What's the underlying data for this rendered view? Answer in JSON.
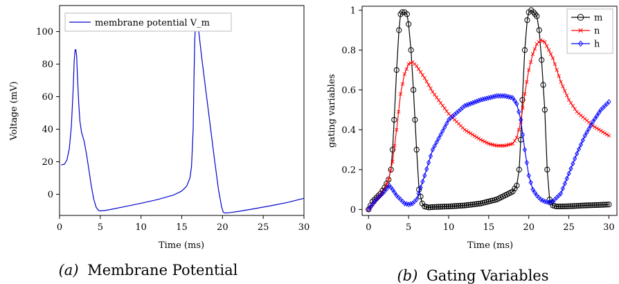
{
  "chart_data": [
    {
      "type": "line",
      "caption_label": "(a)",
      "caption": "Membrane Potential",
      "xlabel": "Time (ms)",
      "ylabel": "Voltage (mV)",
      "xlim": [
        0,
        30
      ],
      "ylim": [
        -13,
        116
      ],
      "xticks": [
        "0",
        "5",
        "10",
        "15",
        "20",
        "25",
        "30"
      ],
      "yticks": [
        "0",
        "20",
        "40",
        "60",
        "80",
        "100"
      ],
      "legend_position": "top-left",
      "series": [
        {
          "name": "membrane potential V_m",
          "color": "#0000cc",
          "x": [
            0.2,
            0.6,
            0.9,
            1.2,
            1.45,
            1.65,
            1.8,
            1.9,
            2.0,
            2.1,
            2.2,
            2.35,
            2.5,
            2.7,
            3.0,
            3.3,
            3.6,
            3.9,
            4.2,
            4.5,
            4.8,
            5.0,
            5.5,
            6.0,
            8.0,
            10.0,
            12.0,
            14.0,
            15.0,
            15.6,
            16.0,
            16.2,
            16.4,
            16.5,
            16.6,
            16.7,
            16.8,
            16.9,
            17.0,
            17.2,
            17.5,
            18.0,
            18.5,
            19.0,
            19.5,
            19.9,
            20.1,
            20.3,
            21.0,
            22.0,
            24.0,
            26.0,
            28.0,
            30.0
          ],
          "y": [
            18,
            18.5,
            21,
            28,
            42,
            62,
            82,
            88.5,
            89,
            85,
            72,
            56,
            45,
            38,
            33,
            25,
            15,
            5,
            -3,
            -8,
            -10,
            -10.2,
            -10,
            -9.6,
            -7.6,
            -5.5,
            -3.3,
            -0.5,
            2,
            5,
            10,
            17,
            40,
            70,
            95,
            106,
            110,
            108,
            104,
            95,
            82,
            62,
            42,
            22,
            3,
            -8,
            -11,
            -11.5,
            -11.2,
            -10.5,
            -8.8,
            -7,
            -5,
            -2.5
          ]
        }
      ]
    },
    {
      "type": "line",
      "caption_label": "(b)",
      "caption": "Gating Variables",
      "xlabel": "Time (ms)",
      "ylabel": "gating variables",
      "xlim": [
        -0.8,
        31
      ],
      "ylim": [
        -0.03,
        1.02
      ],
      "xticks": [
        "0",
        "5",
        "10",
        "15",
        "20",
        "25",
        "30"
      ],
      "yticks": [
        "0",
        "0.2",
        "0.4",
        "0.6",
        "0.8",
        "1"
      ],
      "legend_position": "top-right",
      "series": [
        {
          "name": "m",
          "color": "#000000",
          "marker": "circle",
          "x": [
            0,
            0.5,
            1,
            1.5,
            2,
            2.5,
            2.8,
            3.0,
            3.2,
            3.5,
            3.8,
            4.0,
            4.2,
            4.5,
            4.8,
            5.0,
            5.3,
            5.6,
            6.0,
            6.3,
            6.7,
            7.0,
            7.5,
            8,
            10,
            12,
            14,
            15,
            16,
            17,
            18,
            18.5,
            18.8,
            19.0,
            19.2,
            19.5,
            19.8,
            20.0,
            20.3,
            20.6,
            21.0,
            21.3,
            21.6,
            22.0,
            22.3,
            22.6,
            23.0,
            23.5,
            24,
            25,
            27,
            29,
            30
          ],
          "y": [
            0,
            0.04,
            0.06,
            0.08,
            0.11,
            0.15,
            0.2,
            0.3,
            0.45,
            0.7,
            0.9,
            0.98,
            0.99,
            0.99,
            0.98,
            0.93,
            0.8,
            0.6,
            0.3,
            0.1,
            0.03,
            0.015,
            0.01,
            0.012,
            0.015,
            0.02,
            0.03,
            0.04,
            0.05,
            0.07,
            0.09,
            0.12,
            0.2,
            0.35,
            0.55,
            0.8,
            0.95,
            0.99,
            1.0,
            0.99,
            0.97,
            0.9,
            0.75,
            0.5,
            0.2,
            0.05,
            0.02,
            0.015,
            0.015,
            0.016,
            0.02,
            0.023,
            0.025
          ]
        },
        {
          "name": "n",
          "color": "#ff0000",
          "marker": "x",
          "x": [
            0,
            1,
            2,
            2.5,
            3,
            3.5,
            4,
            4.5,
            5,
            5.5,
            6,
            7,
            8,
            10,
            12,
            14,
            15,
            16,
            17,
            18,
            18.5,
            19,
            19.5,
            20,
            20.5,
            21,
            21.5,
            22,
            23,
            24,
            25,
            26,
            28,
            30
          ],
          "y": [
            0,
            0.05,
            0.1,
            0.15,
            0.24,
            0.4,
            0.58,
            0.68,
            0.73,
            0.74,
            0.72,
            0.66,
            0.59,
            0.48,
            0.4,
            0.35,
            0.33,
            0.32,
            0.32,
            0.33,
            0.36,
            0.44,
            0.58,
            0.7,
            0.78,
            0.83,
            0.85,
            0.84,
            0.76,
            0.64,
            0.55,
            0.49,
            0.42,
            0.37
          ]
        },
        {
          "name": "h",
          "color": "#0000ff",
          "marker": "diamond",
          "x": [
            0,
            1,
            2,
            2.6,
            3.0,
            3.5,
            4,
            4.5,
            5,
            5.5,
            6,
            7,
            8,
            10,
            12,
            14,
            16,
            17,
            18,
            18.5,
            19,
            19.5,
            20,
            20.5,
            21,
            21.5,
            22,
            22.5,
            23,
            24,
            25,
            26,
            27,
            28,
            29,
            30
          ],
          "y": [
            0,
            0.05,
            0.09,
            0.12,
            0.1,
            0.07,
            0.05,
            0.03,
            0.025,
            0.03,
            0.05,
            0.17,
            0.3,
            0.45,
            0.52,
            0.55,
            0.57,
            0.57,
            0.56,
            0.53,
            0.45,
            0.3,
            0.17,
            0.1,
            0.07,
            0.05,
            0.04,
            0.035,
            0.04,
            0.08,
            0.18,
            0.28,
            0.37,
            0.44,
            0.5,
            0.54
          ]
        }
      ]
    }
  ]
}
